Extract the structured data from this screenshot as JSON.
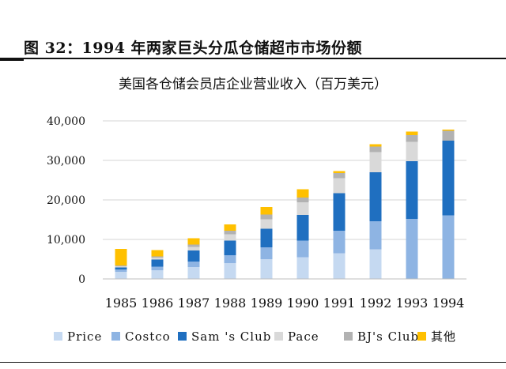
{
  "figure": {
    "title": "图 32：1994 年两家巨头分瓜仓储超市市场份额"
  },
  "chart_data": {
    "type": "bar",
    "stacked": true,
    "title": "美国各仓储会员店企业营业收入（百万美元）",
    "xlabel": "",
    "ylabel": "",
    "ylim": [
      0,
      40000
    ],
    "yticks": [
      0,
      10000,
      20000,
      30000,
      40000
    ],
    "ytick_labels": [
      "0",
      "10,000",
      "20,000",
      "30,000",
      "40,000"
    ],
    "grid": true,
    "legend_position": "bottom",
    "categories": [
      "1985",
      "1986",
      "1987",
      "1988",
      "1989",
      "1990",
      "1991",
      "1992",
      "1993",
      "1994"
    ],
    "series": [
      {
        "name": "Price",
        "color": "#c5d9f1",
        "values": [
          1800,
          2200,
          3000,
          4000,
          5000,
          5500,
          6500,
          7500,
          0,
          0
        ]
      },
      {
        "name": "Costco",
        "color": "#8eb4e3",
        "values": [
          600,
          900,
          1400,
          2000,
          3000,
          4200,
          5700,
          7100,
          15200,
          16100
        ]
      },
      {
        "name": "Sam 's Club",
        "color": "#1f6fc0",
        "values": [
          500,
          1800,
          2800,
          3700,
          4700,
          6500,
          9500,
          12400,
          14600,
          18900
        ]
      },
      {
        "name": "Pace",
        "color": "#d9d9d9",
        "values": [
          300,
          500,
          900,
          1600,
          2400,
          3200,
          3800,
          5100,
          4900,
          0
        ]
      },
      {
        "name": "BJ's Club",
        "color": "#b2b2b2",
        "values": [
          200,
          300,
          600,
          900,
          1200,
          1200,
          1300,
          1400,
          1700,
          2500
        ]
      },
      {
        "name": "其他",
        "color": "#ffc000",
        "values": [
          4200,
          1600,
          1600,
          1600,
          1900,
          2100,
          500,
          600,
          900,
          300
        ]
      }
    ]
  }
}
